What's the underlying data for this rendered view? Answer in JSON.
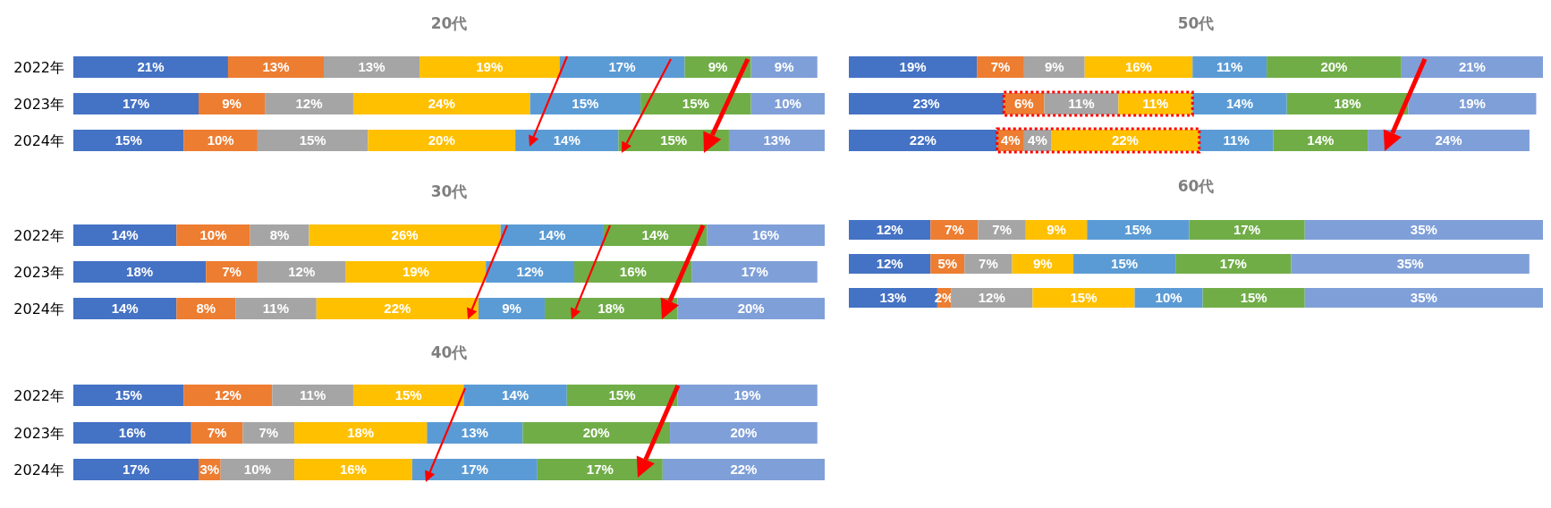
{
  "chart_data": [
    {
      "type": "bar",
      "orientation": "horizontal",
      "stacked": true,
      "title": "20代",
      "categories": [
        "2022年",
        "2023年",
        "2024年"
      ],
      "series": [
        {
          "color": "#4472c4",
          "values": [
            21,
            17,
            15
          ],
          "value_labels": [
            "21%",
            "17%",
            "15%"
          ]
        },
        {
          "color": "#ed7d31",
          "values": [
            13,
            9,
            10
          ],
          "value_labels": [
            "13%",
            "9%",
            "10%"
          ]
        },
        {
          "color": "#a5a5a5",
          "values": [
            13,
            12,
            15
          ],
          "value_labels": [
            "13%",
            "12%",
            "15%"
          ]
        },
        {
          "color": "#ffc000",
          "values": [
            19,
            24,
            20
          ],
          "value_labels": [
            "19%",
            "24%",
            "20%"
          ]
        },
        {
          "color": "#5b9bd5",
          "values": [
            17,
            15,
            14
          ],
          "value_labels": [
            "17%",
            "15%",
            "14%"
          ]
        },
        {
          "color": "#70ad47",
          "values": [
            9,
            15,
            15
          ],
          "value_labels": [
            "9%",
            "15%",
            "15%"
          ]
        },
        {
          "color": "#7f9fd8",
          "values": [
            9,
            10,
            13
          ],
          "value_labels": [
            "9%",
            "10%",
            "13%"
          ]
        }
      ]
    },
    {
      "type": "bar",
      "orientation": "horizontal",
      "stacked": true,
      "title": "30代",
      "categories": [
        "2022年",
        "2023年",
        "2024年"
      ],
      "series": [
        {
          "color": "#4472c4",
          "values": [
            14,
            18,
            14
          ],
          "value_labels": [
            "14%",
            "18%",
            "14%"
          ]
        },
        {
          "color": "#ed7d31",
          "values": [
            10,
            7,
            8
          ],
          "value_labels": [
            "10%",
            "7%",
            "8%"
          ]
        },
        {
          "color": "#a5a5a5",
          "values": [
            8,
            12,
            11
          ],
          "value_labels": [
            "8%",
            "12%",
            "11%"
          ]
        },
        {
          "color": "#ffc000",
          "values": [
            26,
            19,
            22
          ],
          "value_labels": [
            "26%",
            "19%",
            "22%"
          ]
        },
        {
          "color": "#5b9bd5",
          "values": [
            14,
            12,
            9
          ],
          "value_labels": [
            "14%",
            "12%",
            "9%"
          ]
        },
        {
          "color": "#70ad47",
          "values": [
            14,
            16,
            18
          ],
          "value_labels": [
            "14%",
            "16%",
            "18%"
          ]
        },
        {
          "color": "#7f9fd8",
          "values": [
            16,
            17,
            20
          ],
          "value_labels": [
            "16%",
            "17%",
            "20%"
          ]
        }
      ]
    },
    {
      "type": "bar",
      "orientation": "horizontal",
      "stacked": true,
      "title": "40代",
      "categories": [
        "2022年",
        "2023年",
        "2024年"
      ],
      "series": [
        {
          "color": "#4472c4",
          "values": [
            15,
            16,
            17
          ],
          "value_labels": [
            "15%",
            "16%",
            "17%"
          ]
        },
        {
          "color": "#ed7d31",
          "values": [
            12,
            7,
            3
          ],
          "value_labels": [
            "12%",
            "7%",
            "3%"
          ]
        },
        {
          "color": "#a5a5a5",
          "values": [
            11,
            7,
            10
          ],
          "value_labels": [
            "11%",
            "7%",
            "10%"
          ]
        },
        {
          "color": "#ffc000",
          "values": [
            15,
            18,
            16
          ],
          "value_labels": [
            "15%",
            "18%",
            "16%"
          ]
        },
        {
          "color": "#5b9bd5",
          "values": [
            14,
            13,
            17
          ],
          "value_labels": [
            "14%",
            "13%",
            "17%"
          ]
        },
        {
          "color": "#70ad47",
          "values": [
            15,
            20,
            17
          ],
          "value_labels": [
            "15%",
            "20%",
            "17%"
          ]
        },
        {
          "color": "#7f9fd8",
          "values": [
            19,
            20,
            22
          ],
          "value_labels": [
            "19%",
            "20%",
            "22%"
          ]
        }
      ]
    },
    {
      "type": "bar",
      "orientation": "horizontal",
      "stacked": true,
      "title": "50代",
      "categories": [
        null,
        null,
        null
      ],
      "series": [
        {
          "color": "#4472c4",
          "values": [
            19,
            23,
            22
          ],
          "value_labels": [
            "19%",
            "23%",
            "22%"
          ]
        },
        {
          "color": "#ed7d31",
          "values": [
            7,
            6,
            4
          ],
          "value_labels": [
            "7%",
            "6%",
            "4%"
          ]
        },
        {
          "color": "#a5a5a5",
          "values": [
            9,
            11,
            4
          ],
          "value_labels": [
            "9%",
            "11%",
            "4%"
          ]
        },
        {
          "color": "#ffc000",
          "values": [
            16,
            11,
            22
          ],
          "value_labels": [
            "16%",
            "11%",
            "22%"
          ]
        },
        {
          "color": "#5b9bd5",
          "values": [
            11,
            14,
            11
          ],
          "value_labels": [
            "11%",
            "14%",
            "11%"
          ]
        },
        {
          "color": "#70ad47",
          "values": [
            20,
            18,
            14
          ],
          "value_labels": [
            "20%",
            "18%",
            "14%"
          ]
        },
        {
          "color": "#7f9fd8",
          "values": [
            21,
            19,
            24
          ],
          "value_labels": [
            "21%",
            "19%",
            "24%"
          ]
        }
      ]
    },
    {
      "type": "bar",
      "orientation": "horizontal",
      "stacked": true,
      "title": "60代",
      "categories": [
        null,
        null,
        null
      ],
      "series": [
        {
          "color": "#4472c4",
          "values": [
            12,
            12,
            13
          ],
          "value_labels": [
            "12%",
            "12%",
            "13%"
          ]
        },
        {
          "color": "#ed7d31",
          "values": [
            7,
            5,
            2
          ],
          "value_labels": [
            "7%",
            "5%",
            "2%"
          ]
        },
        {
          "color": "#a5a5a5",
          "values": [
            7,
            7,
            12
          ],
          "value_labels": [
            "7%",
            "7%",
            "12%"
          ]
        },
        {
          "color": "#ffc000",
          "values": [
            9,
            9,
            15
          ],
          "value_labels": [
            "9%",
            "9%",
            "15%"
          ]
        },
        {
          "color": "#5b9bd5",
          "values": [
            15,
            15,
            10
          ],
          "value_labels": [
            "15%",
            "15%",
            "10%"
          ]
        },
        {
          "color": "#70ad47",
          "values": [
            17,
            17,
            15
          ],
          "value_labels": [
            "17%",
            "17%",
            "15%"
          ]
        },
        {
          "color": "#7f9fd8",
          "values": [
            35,
            35,
            35
          ],
          "value_labels": [
            "35%",
            "35%",
            "35%"
          ]
        }
      ]
    }
  ]
}
